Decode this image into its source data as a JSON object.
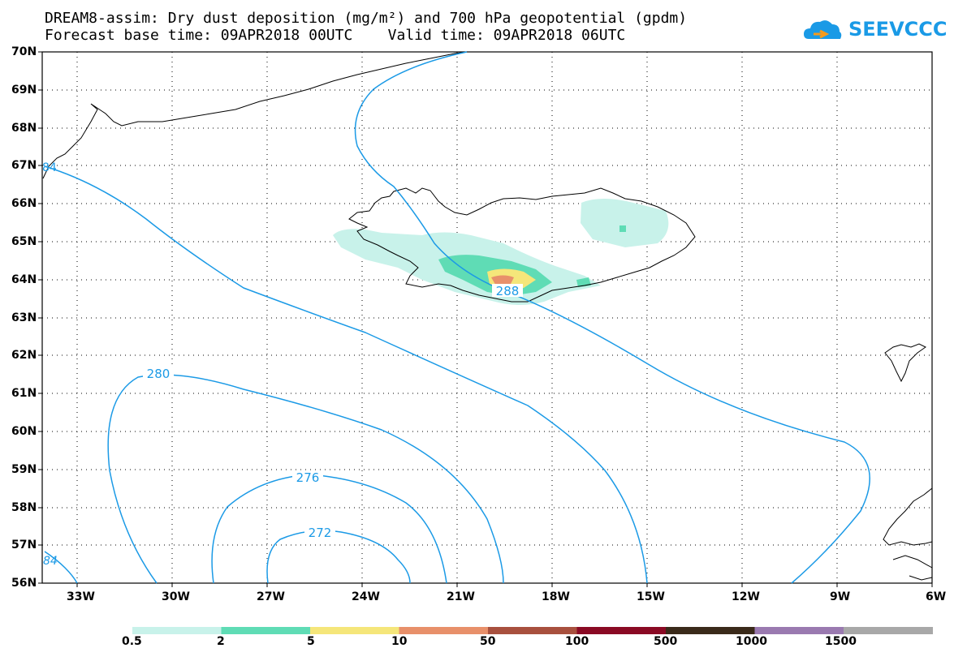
{
  "title_line1": "DREAM8-assim: Dry dust deposition (mg/m²) and 700 hPa geopotential (gpdm)",
  "title_line2": "Forecast base time: 09APR2018 00UTC    Valid time: 09APR2018 06UTC",
  "logo_text": "SEEVCCC",
  "latitudes": [
    "70N",
    "69N",
    "68N",
    "67N",
    "66N",
    "65N",
    "64N",
    "63N",
    "62N",
    "61N",
    "60N",
    "59N",
    "58N",
    "57N",
    "56N"
  ],
  "longitudes": [
    "33W",
    "30W",
    "27W",
    "24W",
    "21W",
    "18W",
    "15W",
    "12W",
    "9W",
    "6W"
  ],
  "contour_labels": [
    "280",
    "276",
    "272",
    "288",
    "84",
    "84"
  ],
  "legend": {
    "labels": [
      "0.5",
      "2",
      "5",
      "10",
      "50",
      "100",
      "500",
      "1000",
      "1500"
    ],
    "colors": [
      "#c8f2ea",
      "#5fdcb5",
      "#f5e67a",
      "#e8906a",
      "#a8503e",
      "#8a0a24",
      "#3a2a1a",
      "#9a7ab0",
      "#a8a8a8"
    ]
  },
  "colors": {
    "contour": "#1b9ae6",
    "coast": "#000000"
  }
}
